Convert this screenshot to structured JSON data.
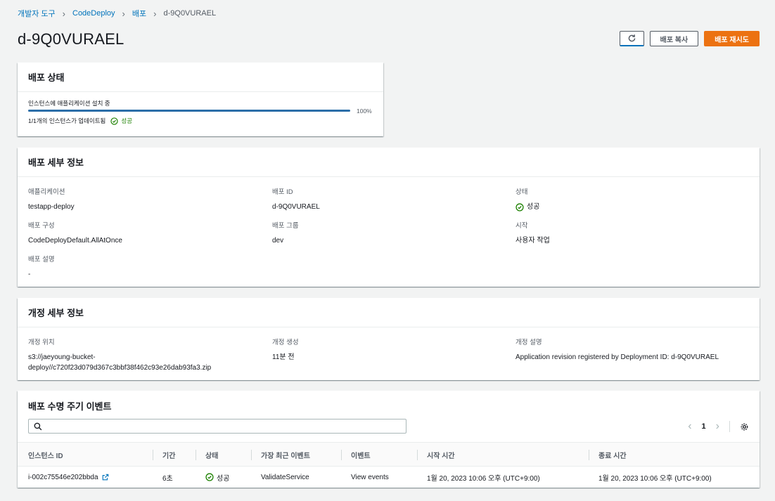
{
  "breadcrumb": [
    "개발자 도구",
    "CodeDeploy",
    "배포",
    "d-9Q0VURAEL"
  ],
  "page_title": "d-9Q0VURAEL",
  "actions": {
    "copy": "배포 복사",
    "retry": "배포 재시도"
  },
  "status_panel": {
    "title": "배포 상태",
    "label": "인스턴스에 애플리케이션 설치 중",
    "progress": 100,
    "progress_text": "100%",
    "updated": "1/1개의 인스턴스가 업데이트됨",
    "result": "성공"
  },
  "details_panel": {
    "title": "배포 세부 정보",
    "application": {
      "label": "애플리케이션",
      "value": "testapp-deploy"
    },
    "deployment_id": {
      "label": "배포 ID",
      "value": "d-9Q0VURAEL"
    },
    "status": {
      "label": "상태",
      "value": "성공"
    },
    "config": {
      "label": "배포 구성",
      "value": "CodeDeployDefault.AllAtOnce"
    },
    "group": {
      "label": "배포 그룹",
      "value": "dev"
    },
    "initiated": {
      "label": "시작",
      "value": "사용자 작업"
    },
    "description": {
      "label": "배포 설명",
      "value": "-"
    }
  },
  "revision_panel": {
    "title": "개정 세부 정보",
    "location": {
      "label": "개정 위치",
      "line1": "s3://jaeyoung-bucket-",
      "line2": "deploy//c720f23d079d367c3bbf38f462c93e26dab93fa3.zip"
    },
    "created": {
      "label": "개정 생성",
      "value": "11분 전"
    },
    "description": {
      "label": "개정 설명",
      "value": "Application revision registered by Deployment ID: d-9Q0VURAEL"
    }
  },
  "events_panel": {
    "title": "배포 수명 주기 이벤트",
    "search_placeholder": "",
    "page": "1",
    "columns": [
      "인스턴스 ID",
      "기간",
      "상태",
      "가장 최근 이벤트",
      "이벤트",
      "시작 시간",
      "종료 시간"
    ],
    "rows": [
      {
        "instance_id": "i-002c75546e202bbda",
        "duration": "6초",
        "status": "성공",
        "latest_event": "ValidateService",
        "events": "View events",
        "start": "1월 20, 2023 10:06 오후 (UTC+9:00)",
        "end": "1월 20, 2023 10:06 오후 (UTC+9:00)"
      }
    ]
  },
  "colors": {
    "link": "#0073bb",
    "success": "#1d8102",
    "primary": "#ec7211",
    "progress": "#2b6ea8"
  }
}
